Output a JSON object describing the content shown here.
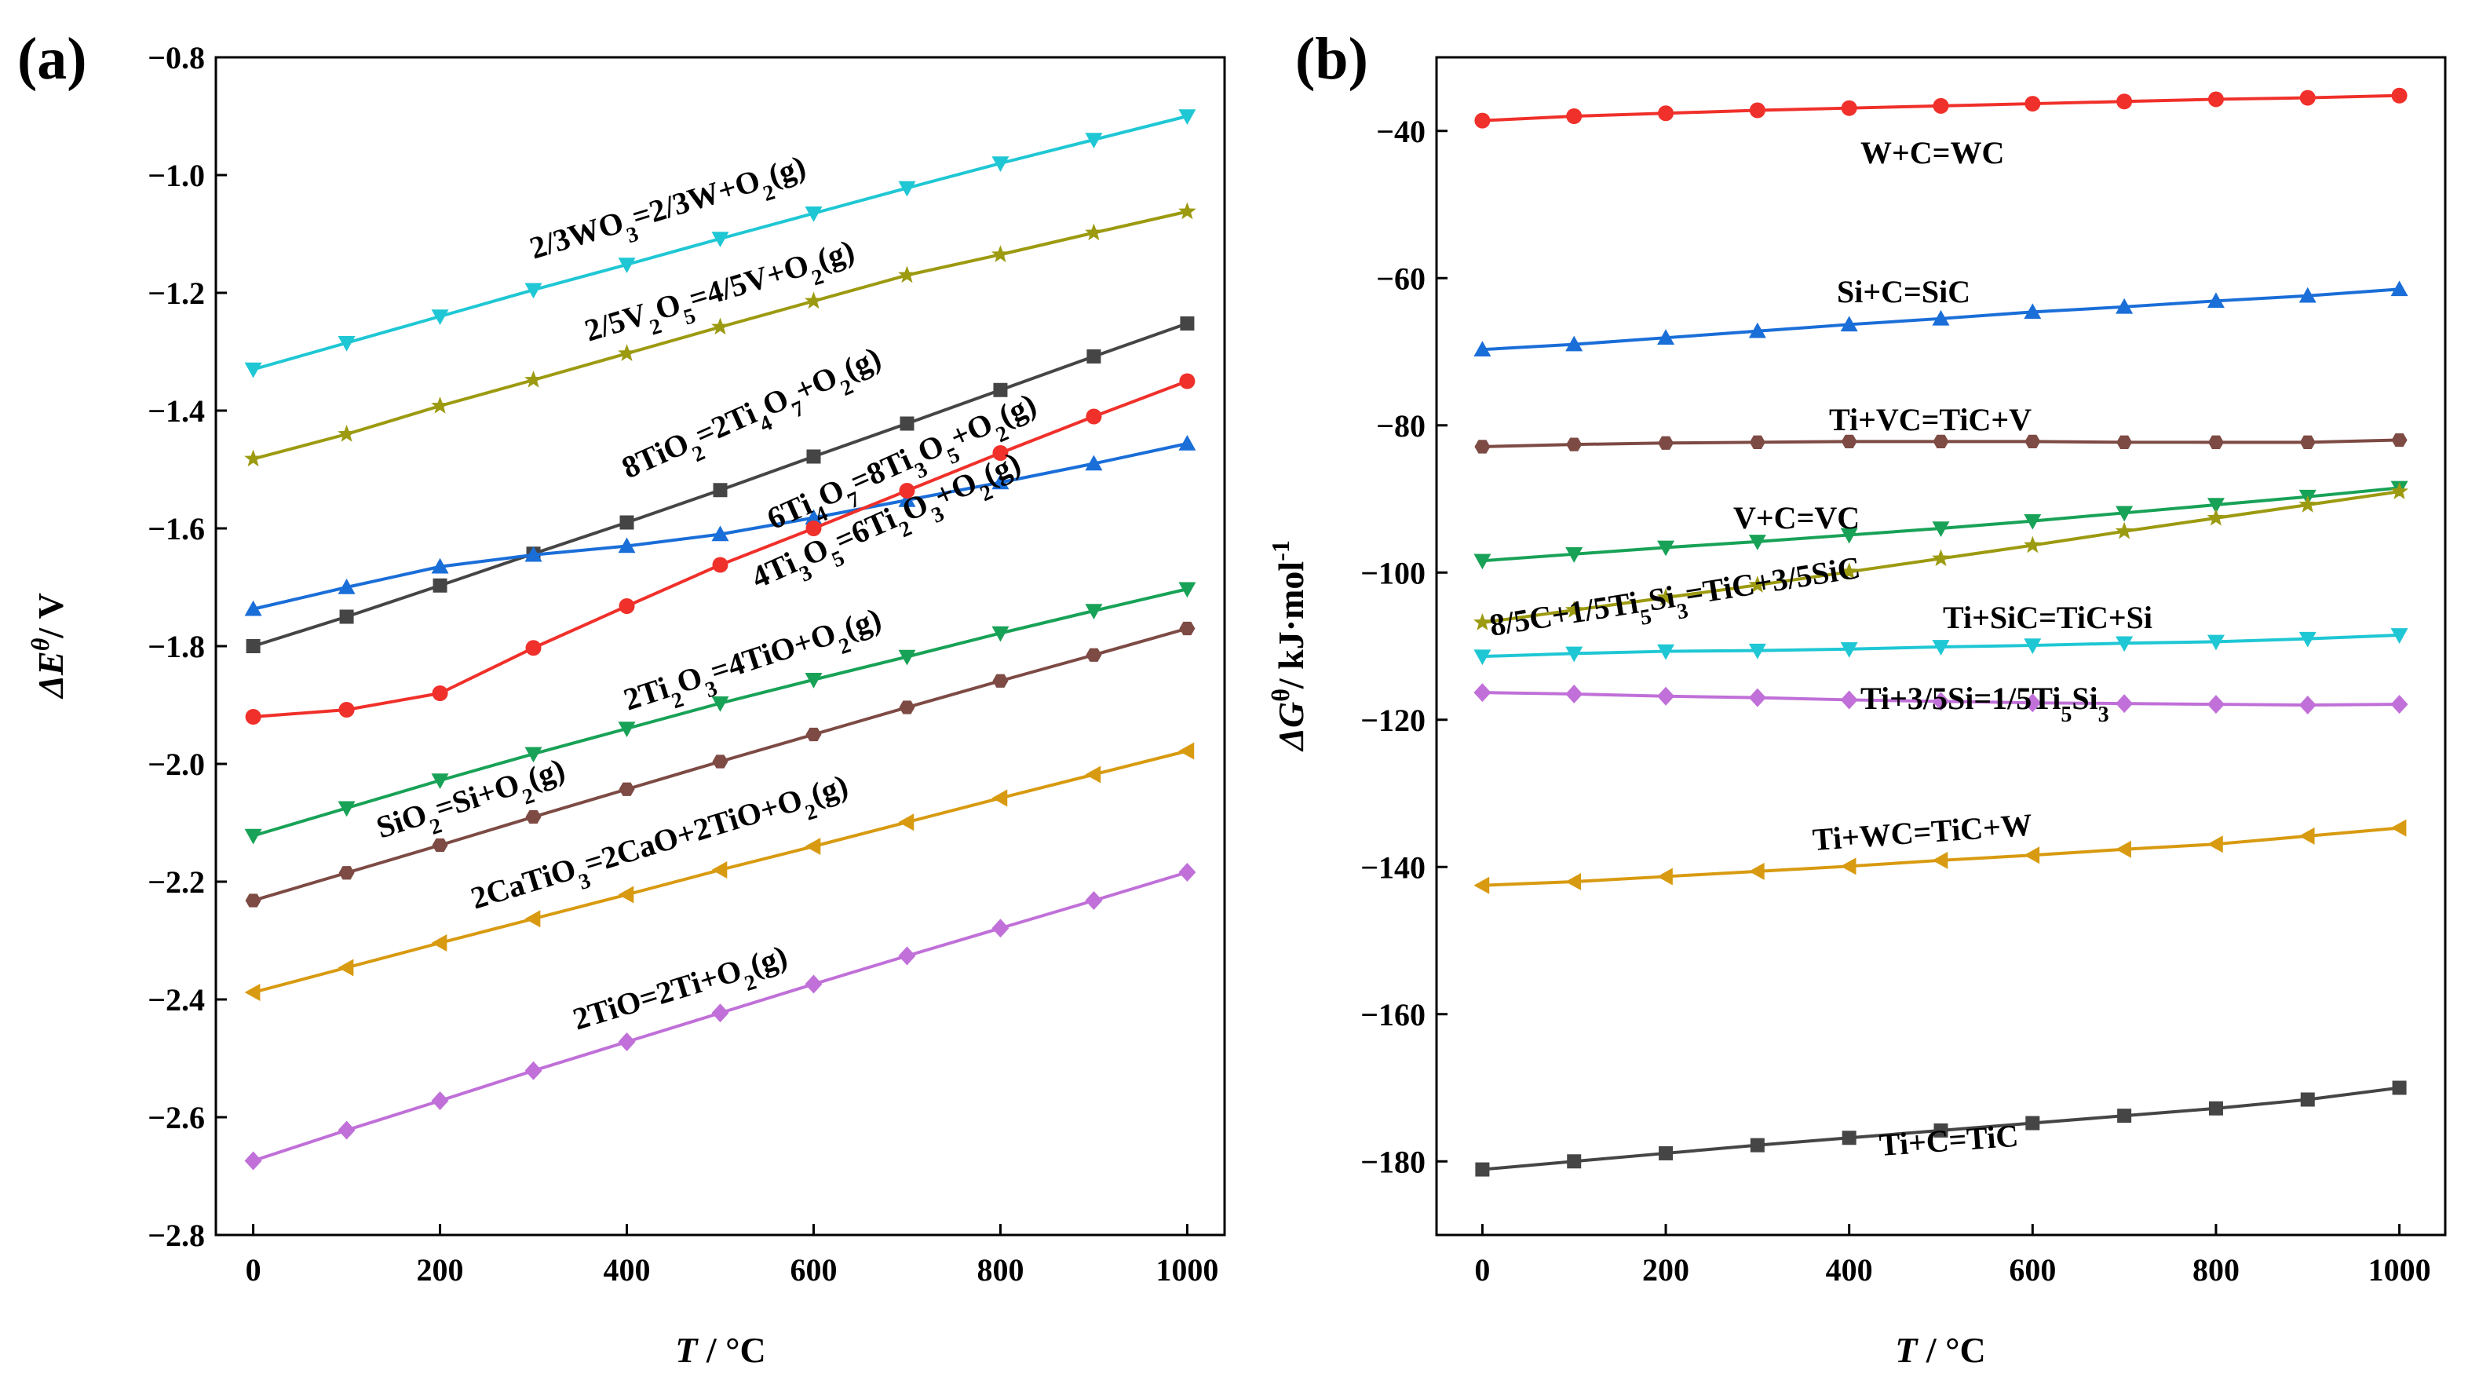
{
  "chart_data": [
    {
      "panel_label": "(a)",
      "type": "line",
      "xlabel": "T / °C",
      "ylabel": "ΔEθ/ V",
      "xlim": [
        -40,
        1040
      ],
      "ylim": [
        -2.8,
        -0.8
      ],
      "xticks": [
        0,
        200,
        400,
        600,
        800,
        1000
      ],
      "yticks": [
        -2.8,
        -2.6,
        -2.4,
        -2.2,
        -2.0,
        -1.8,
        -1.6,
        -1.4,
        -1.2,
        -1.0,
        -0.8
      ],
      "x": [
        0,
        100,
        200,
        300,
        400,
        500,
        600,
        700,
        800,
        900,
        1000
      ],
      "series": [
        {
          "name": "2/3WO3=2/3W+O2(g)",
          "color": "#1fc7d4",
          "marker": "triangle-down",
          "values": [
            -1.33,
            -1.285,
            -1.24,
            -1.195,
            -1.152,
            -1.108,
            -1.065,
            -1.022,
            -0.98,
            -0.94,
            -0.9
          ]
        },
        {
          "name": "2/5V2O5=4/5V+O2(g)",
          "color": "#9c9a10",
          "marker": "star",
          "values": [
            -1.482,
            -1.44,
            -1.392,
            -1.348,
            -1.303,
            -1.258,
            -1.214,
            -1.17,
            -1.135,
            -1.098,
            -1.062
          ]
        },
        {
          "name": "8TiO2=2Ti4O7+O2(g)",
          "color": "#454545",
          "marker": "square",
          "values": [
            -1.8,
            -1.75,
            -1.697,
            -1.643,
            -1.59,
            -1.535,
            -1.478,
            -1.422,
            -1.365,
            -1.308,
            -1.252
          ]
        },
        {
          "name": "6Ti4O7=8Ti3O5+O2(g)",
          "color": "#1a6ed8",
          "marker": "triangle-up",
          "values": [
            -1.737,
            -1.7,
            -1.665,
            -1.645,
            -1.63,
            -1.61,
            -1.582,
            -1.552,
            -1.522,
            -1.49,
            -1.456
          ]
        },
        {
          "name": "4Ti3O5=6Ti2O3+O2(g)",
          "color": "#f0302a",
          "marker": "circle",
          "values": [
            -1.92,
            -1.908,
            -1.88,
            -1.803,
            -1.732,
            -1.662,
            -1.6,
            -1.536,
            -1.472,
            -1.41,
            -1.35
          ]
        },
        {
          "name": "2Ti2O3=4TiO+O2(g)",
          "color": "#18a257",
          "marker": "triangle-down",
          "values": [
            -2.122,
            -2.075,
            -2.028,
            -1.983,
            -1.94,
            -1.897,
            -1.857,
            -1.818,
            -1.778,
            -1.74,
            -1.703
          ]
        },
        {
          "name": "SiO2=Si+O2(g)",
          "color": "#7d4a44",
          "marker": "hexagon",
          "values": [
            -2.232,
            -2.185,
            -2.138,
            -2.09,
            -2.043,
            -1.996,
            -1.95,
            -1.904,
            -1.859,
            -1.815,
            -1.77
          ]
        },
        {
          "name": "2CaTiO3=2CaO+2TiO+O2(g)",
          "color": "#d89a10",
          "marker": "triangle-left",
          "values": [
            -2.388,
            -2.346,
            -2.304,
            -2.263,
            -2.222,
            -2.18,
            -2.14,
            -2.099,
            -2.058,
            -2.018,
            -1.978
          ]
        },
        {
          "name": "2TiO=2Ti+O2(g)",
          "color": "#c070d8",
          "marker": "diamond",
          "values": [
            -2.674,
            -2.622,
            -2.572,
            -2.521,
            -2.472,
            -2.423,
            -2.374,
            -2.326,
            -2.279,
            -2.232,
            -2.184
          ]
        }
      ]
    },
    {
      "panel_label": "(b)",
      "type": "line",
      "xlabel": "T / °C",
      "ylabel": "ΔGθ/ kJ·mol-1",
      "xlim": [
        -50,
        1050
      ],
      "ylim": [
        -190,
        -30
      ],
      "xticks": [
        0,
        200,
        400,
        600,
        800,
        1000
      ],
      "yticks": [
        -180,
        -160,
        -140,
        -120,
        -100,
        -80,
        -60,
        -40
      ],
      "x": [
        0,
        100,
        200,
        300,
        400,
        500,
        600,
        700,
        800,
        900,
        1000
      ],
      "series": [
        {
          "name": "W+C=WC",
          "color": "#f0302a",
          "marker": "circle",
          "values": [
            -38.6,
            -38.0,
            -37.6,
            -37.2,
            -36.9,
            -36.6,
            -36.3,
            -36.0,
            -35.7,
            -35.5,
            -35.2
          ]
        },
        {
          "name": "Si+C=SiC",
          "color": "#1a6ed8",
          "marker": "triangle-up",
          "values": [
            -69.7,
            -69.0,
            -68.1,
            -67.2,
            -66.3,
            -65.5,
            -64.6,
            -63.9,
            -63.1,
            -62.4,
            -61.5
          ]
        },
        {
          "name": "Ti+VC=TiC+V",
          "color": "#7d4a44",
          "marker": "hexagon",
          "values": [
            -82.9,
            -82.6,
            -82.4,
            -82.3,
            -82.2,
            -82.2,
            -82.2,
            -82.3,
            -82.3,
            -82.3,
            -82.0
          ]
        },
        {
          "name": "V+C=VC",
          "color": "#18a257",
          "marker": "triangle-down",
          "values": [
            -98.4,
            -97.5,
            -96.6,
            -95.8,
            -94.9,
            -94.0,
            -93.0,
            -91.9,
            -90.8,
            -89.7,
            -88.5
          ]
        },
        {
          "name": "8/5C+1/5Ti5Si3=TiC+3/5SiC",
          "color": "#9c9a10",
          "marker": "star",
          "values": [
            -106.8,
            -105.1,
            -103.4,
            -101.7,
            -99.9,
            -98.1,
            -96.3,
            -94.4,
            -92.6,
            -90.8,
            -89.0
          ]
        },
        {
          "name": "Ti+SiC=TiC+Si",
          "color": "#1fc7d4",
          "marker": "triangle-down",
          "values": [
            -111.4,
            -111.0,
            -110.7,
            -110.6,
            -110.4,
            -110.1,
            -109.9,
            -109.6,
            -109.4,
            -109.0,
            -108.5
          ]
        },
        {
          "name": "Ti+3/5Si=1/5Ti5Si3",
          "color": "#c070d8",
          "marker": "diamond",
          "values": [
            -116.3,
            -116.5,
            -116.8,
            -117.0,
            -117.3,
            -117.5,
            -117.7,
            -117.8,
            -117.9,
            -118.0,
            -117.9
          ]
        },
        {
          "name": "Ti+WC=TiC+W",
          "color": "#d89a10",
          "marker": "triangle-left",
          "values": [
            -142.5,
            -142.0,
            -141.3,
            -140.6,
            -139.9,
            -139.1,
            -138.4,
            -137.6,
            -136.9,
            -135.8,
            -134.7
          ]
        },
        {
          "name": "Ti+C=TiC",
          "color": "#454545",
          "marker": "square",
          "values": [
            -181.1,
            -180.0,
            -178.9,
            -177.8,
            -176.8,
            -175.8,
            -174.8,
            -173.8,
            -172.8,
            -171.6,
            -170.0
          ]
        }
      ]
    }
  ]
}
